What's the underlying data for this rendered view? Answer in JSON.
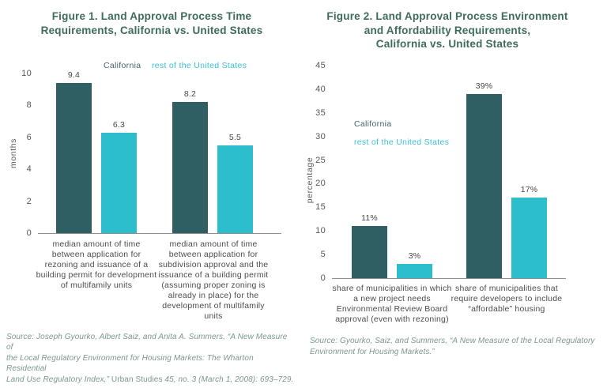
{
  "page": {
    "background": "#ffffff"
  },
  "chart_data": [
    {
      "type": "bar",
      "title": "Figure 1. Land Approval Process Time\nRequirements, California vs. United States",
      "ylabel": "months",
      "ylim": [
        0,
        10
      ],
      "yticks": [
        0,
        2,
        4,
        6,
        8,
        10
      ],
      "grid": false,
      "legend_position": "top-inline",
      "categories": [
        "median amount of time\nbetween application for\nrezoning and issuance of a\nbuilding permit for development\nof multifamily units",
        "median amount of time\nbetween application for\nsubdivision approval and the\nissuance of a building permit\n(assuming proper zoning is\nalready in place) for the\ndevelopment of multifamily\nunits"
      ],
      "series": [
        {
          "name": "California",
          "color": "#2f5f63",
          "label_color": "#48616b",
          "values": [
            9.4,
            8.2
          ],
          "labels": [
            "9.4",
            "8.2"
          ]
        },
        {
          "name": "rest of the United States",
          "color": "#2cbecd",
          "label_color": "#3bc0d6",
          "values": [
            6.3,
            5.5
          ],
          "labels": [
            "6.3",
            "5.5"
          ]
        }
      ],
      "source_parts": [
        "Source: Joseph Gyourko, Albert Saiz, and Anita A. Summers, “A New Measure of\nthe Local Regulatory Environment for Housing Markets: The Wharton Residential\nLand Use Regulatory Index,” ",
        "Urban Studies",
        " 45, no. 3 (March 1, 2008): 693–729."
      ]
    },
    {
      "type": "bar",
      "title": "Figure 2. Land Approval Process Environment\nand Affordability Requirements,\nCalifornia vs. United States",
      "ylabel": "percentage",
      "ylim": [
        0,
        45
      ],
      "yticks": [
        0,
        5,
        10,
        15,
        20,
        25,
        30,
        35,
        40,
        45
      ],
      "grid": false,
      "legend_position": "left-stacked",
      "categories": [
        "share of municipalities in which\na new project needs\nEnvironmental Review Board\napproval (even with rezoning)",
        "share of municipalities that\nrequire developers to include\n“affordable” housing"
      ],
      "series": [
        {
          "name": "California",
          "color": "#2f5f63",
          "label_color": "#48616b",
          "values": [
            11,
            39
          ],
          "labels": [
            "11%",
            "39%"
          ]
        },
        {
          "name": "rest of the United States",
          "color": "#2cbecd",
          "label_color": "#3bc0d6",
          "values": [
            3,
            17
          ],
          "labels": [
            "3%",
            "17%"
          ]
        }
      ],
      "source": "Source: Gyourko, Saiz, and Summers, “A New Measure of the Local Regulatory\nEnvironment for Housing Markets.”"
    }
  ]
}
